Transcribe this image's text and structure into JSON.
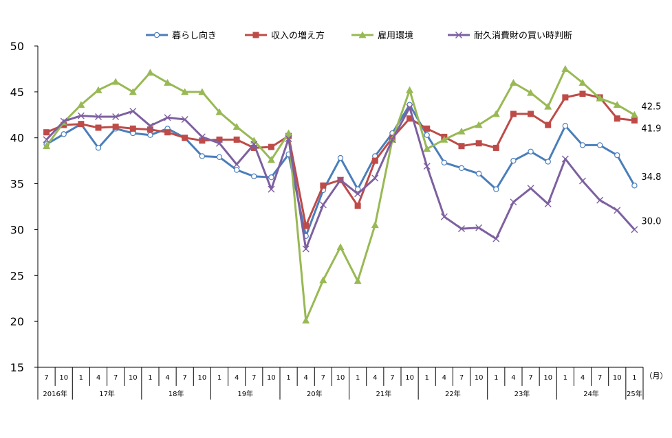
{
  "chart_data": {
    "type": "line",
    "title": "",
    "xlabel": "",
    "ylabel": "",
    "ylim": [
      15,
      50
    ],
    "yticks": [
      15,
      20,
      25,
      30,
      35,
      40,
      45,
      50
    ],
    "grid": false,
    "legend_position": "top",
    "x_unit": "（月）",
    "x_months": [
      "7",
      "10",
      "1",
      "4",
      "7",
      "10",
      "1",
      "4",
      "7",
      "10",
      "1",
      "4",
      "7",
      "10",
      "1",
      "4",
      "7",
      "10",
      "1",
      "4",
      "7",
      "10",
      "1",
      "4",
      "7",
      "10",
      "1",
      "4",
      "7",
      "10",
      "1",
      "4",
      "7",
      "10",
      "1"
    ],
    "x_years": [
      {
        "label": "2016年",
        "count": 2
      },
      {
        "label": "17年",
        "count": 4
      },
      {
        "label": "18年",
        "count": 4
      },
      {
        "label": "19年",
        "count": 4
      },
      {
        "label": "20年",
        "count": 4
      },
      {
        "label": "21年",
        "count": 4
      },
      {
        "label": "22年",
        "count": 4
      },
      {
        "label": "23年",
        "count": 4
      },
      {
        "label": "24年",
        "count": 4
      },
      {
        "label": "25年",
        "count": 1
      }
    ],
    "series": [
      {
        "name": "暮らし向き",
        "color": "#4a7ebb",
        "marker": "circle",
        "end_label": "34.8",
        "values": [
          39.3,
          40.4,
          41.5,
          38.9,
          41.0,
          40.5,
          40.3,
          41.0,
          40.0,
          38.0,
          37.9,
          36.5,
          35.8,
          35.7,
          38.2,
          29.3,
          34.3,
          37.8,
          34.4,
          38.0,
          40.5,
          43.6,
          40.3,
          37.3,
          36.7,
          36.1,
          34.4,
          37.5,
          38.5,
          37.4,
          41.3,
          39.2,
          39.2,
          38.1,
          34.8
        ]
      },
      {
        "name": "収入の増え方",
        "color": "#be4b48",
        "marker": "square",
        "end_label": "41.9",
        "values": [
          40.6,
          41.4,
          41.5,
          41.1,
          41.2,
          41.0,
          40.9,
          40.6,
          40.0,
          39.7,
          39.8,
          39.8,
          38.9,
          39.0,
          40.2,
          30.4,
          34.8,
          35.4,
          32.6,
          37.5,
          40.0,
          42.1,
          41.0,
          40.1,
          39.1,
          39.4,
          38.9,
          42.6,
          42.6,
          41.4,
          44.4,
          44.8,
          44.4,
          42.1,
          41.9
        ]
      },
      {
        "name": "雇用環境",
        "color": "#98b954",
        "marker": "triangle",
        "end_label": "42.5",
        "values": [
          39.1,
          41.7,
          43.6,
          45.2,
          46.1,
          45.0,
          47.1,
          46.0,
          45.0,
          45.0,
          42.8,
          41.2,
          39.7,
          37.6,
          40.5,
          20.1,
          24.5,
          28.1,
          24.4,
          30.5,
          39.8,
          45.2,
          38.8,
          39.8,
          40.7,
          41.4,
          42.6,
          46.0,
          44.9,
          43.4,
          47.5,
          46.0,
          44.3,
          43.6,
          42.5
        ]
      },
      {
        "name": "耐久消費財の買い時判断",
        "color": "#7d60a0",
        "marker": "x",
        "end_label": "30.0",
        "values": [
          39.8,
          41.8,
          42.4,
          42.3,
          42.3,
          42.9,
          41.3,
          42.2,
          42.0,
          40.1,
          39.4,
          37.1,
          39.3,
          34.4,
          39.9,
          27.9,
          32.7,
          35.4,
          33.9,
          35.6,
          39.8,
          43.3,
          36.9,
          31.4,
          30.1,
          30.2,
          29.0,
          33.0,
          34.5,
          32.8,
          37.7,
          35.3,
          33.2,
          32.1,
          30.0
        ]
      }
    ]
  }
}
